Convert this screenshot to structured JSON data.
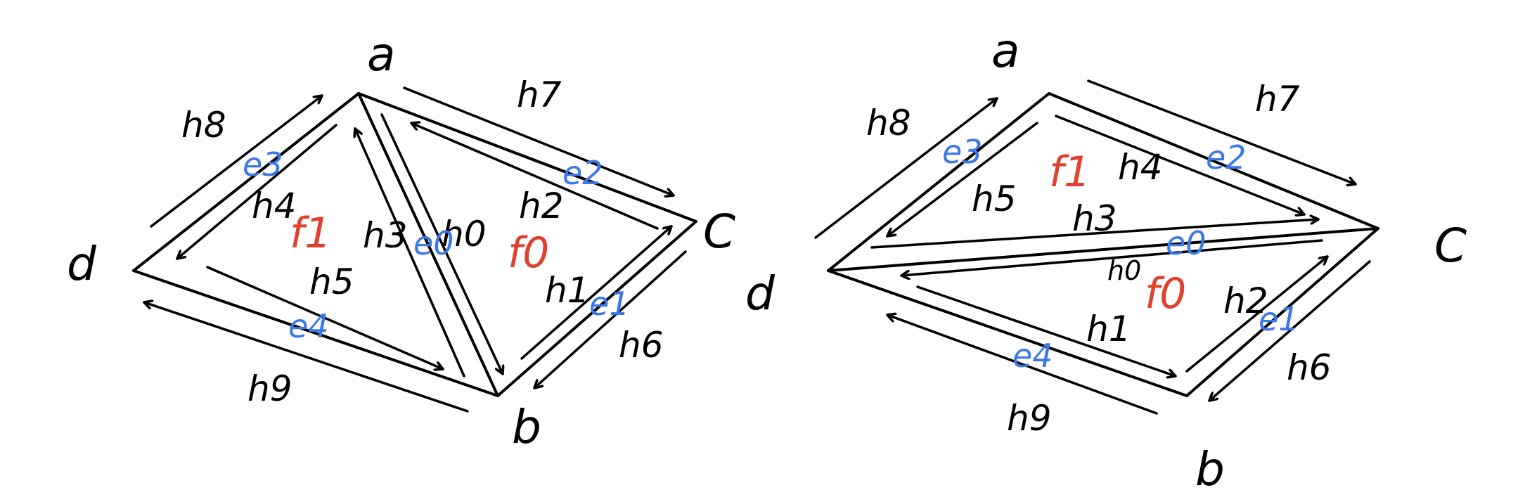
{
  "colors": {
    "ink": "#000000",
    "edge_label": "#3b78e7",
    "face_label": "#e0412f"
  },
  "diagrams": [
    {
      "vertices": {
        "a": "a",
        "b": "b",
        "c": "C",
        "d": "d"
      },
      "halfedges": {
        "h0": "h0",
        "h1": "h1",
        "h2": "h2",
        "h3": "h3",
        "h4": "h4",
        "h5": "h5",
        "h6": "h6",
        "h7": "h7",
        "h8": "h8",
        "h9": "h9"
      },
      "edges": {
        "e0": "e0",
        "e1": "e1",
        "e2": "e2",
        "e3": "e3",
        "e4": "e4"
      },
      "faces": {
        "f0": "f0",
        "f1": "f1"
      }
    },
    {
      "vertices": {
        "a": "a",
        "b": "b",
        "c": "C",
        "d": "d"
      },
      "halfedges": {
        "h0": "h0",
        "h1": "h1",
        "h2": "h2",
        "h3": "h3",
        "h4": "h4",
        "h5": "h5",
        "h6": "h6",
        "h7": "h7",
        "h8": "h8",
        "h9": "h9"
      },
      "edges": {
        "e0": "e0",
        "e1": "e1",
        "e2": "e2",
        "e3": "e3",
        "e4": "e4"
      },
      "faces": {
        "f0": "f0",
        "f1": "f1"
      }
    }
  ]
}
